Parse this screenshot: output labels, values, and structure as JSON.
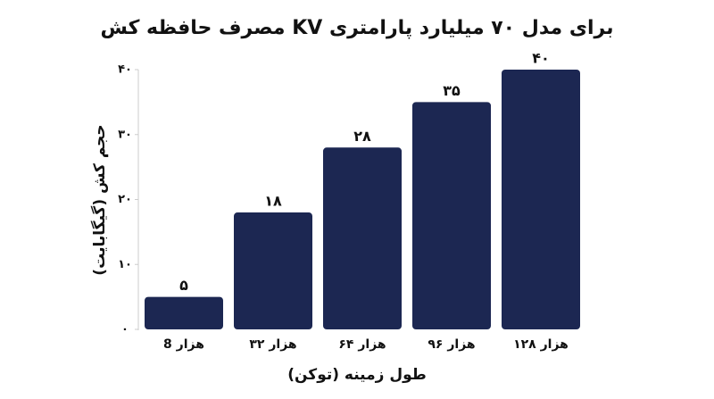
{
  "chart_data": {
    "type": "bar",
    "title": "مصرف حافظه کش KV برای مدل ۷۰ میلیارد پارامتری",
    "x_label": "طول زمینه (توکن)",
    "y_label": "حجم کش (گیگابایت)",
    "categories": [
      "8 هزار",
      "۳۲ هزار",
      "۶۴ هزار",
      "۹۶ هزار",
      "۱۲۸ هزار"
    ],
    "values": [
      5,
      18,
      28,
      35,
      40
    ],
    "value_labels": [
      "۵",
      "۱۸",
      "۲۸",
      "۳۵",
      "۴۰"
    ],
    "color": "#1c2752",
    "ylim": [
      0,
      40
    ],
    "yticks": [
      {
        "value": 0,
        "label": "۰"
      },
      {
        "value": 10,
        "label": "۱۰"
      },
      {
        "value": 20,
        "label": "۲۰"
      },
      {
        "value": 30,
        "label": "۳۰"
      },
      {
        "value": 40,
        "label": "۴۰"
      }
    ],
    "grid": false
  }
}
